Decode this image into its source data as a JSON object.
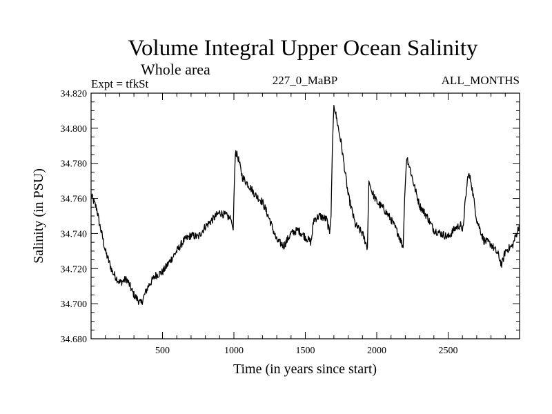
{
  "chart_data": {
    "type": "line",
    "title": "Volume Integral Upper Ocean Salinity",
    "subtitle_left": "Whole area",
    "label_left": "Expt = tfkSt",
    "label_center": "227_0_MaBP",
    "label_right": "ALL_MONTHS",
    "xlabel": "Time (in years since start)",
    "ylabel": "Salinity (in PSU)",
    "xlim": [
      0,
      3000
    ],
    "ylim": [
      34.68,
      34.82
    ],
    "xticks": [
      500,
      1000,
      1500,
      2000,
      2500
    ],
    "xtick_labels": [
      "500",
      "1000",
      "1500",
      "2000",
      "2500"
    ],
    "yticks": [
      34.68,
      34.7,
      34.72,
      34.74,
      34.76,
      34.78,
      34.8,
      34.82
    ],
    "ytick_labels": [
      "34.680",
      "34.700",
      "34.720",
      "34.740",
      "34.760",
      "34.780",
      "34.800",
      "34.820"
    ],
    "grid": false,
    "series": [
      {
        "name": "salinity",
        "x": [
          0,
          20,
          40,
          60,
          80,
          100,
          150,
          200,
          250,
          300,
          350,
          400,
          450,
          500,
          550,
          600,
          650,
          700,
          750,
          800,
          850,
          900,
          950,
          980,
          995,
          1000,
          1010,
          1030,
          1060,
          1100,
          1150,
          1200,
          1250,
          1300,
          1350,
          1400,
          1450,
          1500,
          1540,
          1560,
          1600,
          1650,
          1670,
          1680,
          1690,
          1700,
          1720,
          1750,
          1800,
          1850,
          1900,
          1935,
          1945,
          1960,
          2000,
          2050,
          2100,
          2150,
          2185,
          2195,
          2210,
          2230,
          2260,
          2300,
          2350,
          2400,
          2450,
          2500,
          2550,
          2590,
          2600,
          2620,
          2640,
          2660,
          2700,
          2750,
          2800,
          2850,
          2875,
          2900,
          2950,
          3000
        ],
        "y": [
          34.762,
          34.758,
          34.754,
          34.745,
          34.738,
          34.73,
          34.718,
          34.712,
          34.714,
          34.705,
          34.7,
          34.71,
          34.716,
          34.718,
          34.724,
          34.73,
          34.736,
          34.739,
          34.738,
          34.744,
          34.748,
          34.752,
          34.75,
          34.748,
          34.742,
          34.76,
          34.787,
          34.783,
          34.772,
          34.768,
          34.762,
          34.758,
          34.748,
          34.736,
          34.733,
          34.74,
          34.742,
          34.738,
          34.735,
          34.748,
          34.75,
          34.748,
          34.74,
          34.75,
          34.79,
          34.814,
          34.805,
          34.792,
          34.762,
          34.745,
          34.74,
          34.732,
          34.77,
          34.765,
          34.758,
          34.754,
          34.748,
          34.74,
          34.732,
          34.76,
          34.784,
          34.778,
          34.768,
          34.756,
          34.75,
          34.742,
          34.74,
          34.738,
          34.743,
          34.745,
          34.74,
          34.758,
          34.774,
          34.77,
          34.748,
          34.736,
          34.734,
          34.728,
          34.722,
          34.73,
          34.733,
          34.745
        ]
      }
    ]
  }
}
